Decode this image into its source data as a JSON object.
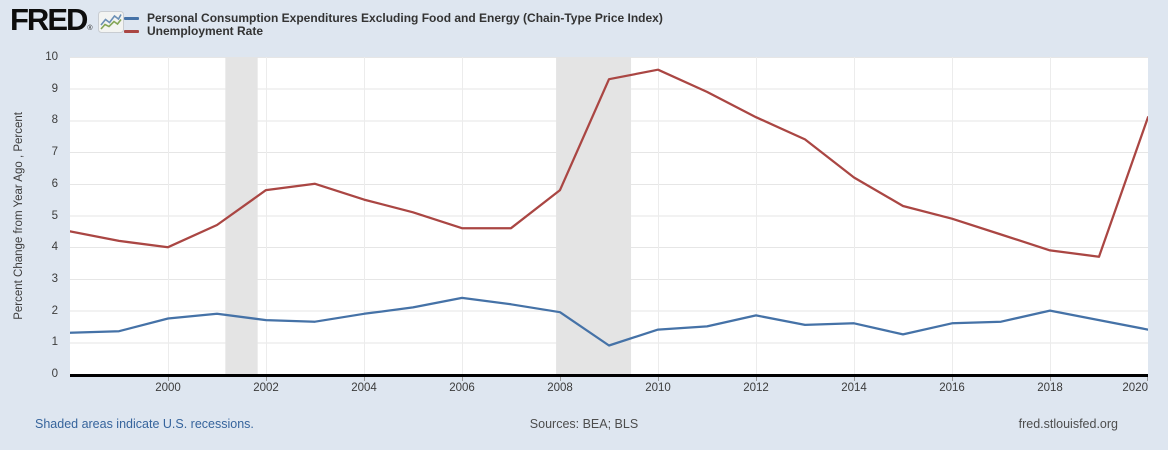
{
  "header": {
    "logo_text": "FRED",
    "logo_registered": "®",
    "logo_icon": "line-chart-icon",
    "legend": [
      {
        "label": "Personal Consumption Expenditures Excluding Food and Energy (Chain-Type Price Index)",
        "color": "#4572a7"
      },
      {
        "label": "Unemployment Rate",
        "color": "#aa4643"
      }
    ]
  },
  "chart_data": {
    "type": "line",
    "title": "",
    "xlabel": "",
    "ylabel": "Percent Change from Year Ago , Percent",
    "ylim": [
      0,
      10
    ],
    "xlim": [
      1998,
      2020
    ],
    "yticks": [
      0,
      1,
      2,
      3,
      4,
      5,
      6,
      7,
      8,
      9,
      10
    ],
    "xticks": [
      2000,
      2002,
      2004,
      2006,
      2008,
      2010,
      2012,
      2014,
      2016,
      2018,
      2020
    ],
    "grid": true,
    "legend_position": "top-left",
    "x": [
      1998,
      1999,
      2000,
      2001,
      2002,
      2003,
      2004,
      2005,
      2006,
      2007,
      2008,
      2009,
      2010,
      2011,
      2012,
      2013,
      2014,
      2015,
      2016,
      2017,
      2018,
      2019,
      2020
    ],
    "series": [
      {
        "name": "Personal Consumption Expenditures Excluding Food and Energy (Chain-Type Price Index)",
        "color": "#4572a7",
        "values": [
          1.3,
          1.35,
          1.75,
          1.9,
          1.7,
          1.65,
          1.9,
          2.1,
          2.4,
          2.2,
          1.95,
          0.9,
          1.4,
          1.5,
          1.85,
          1.55,
          1.6,
          1.25,
          1.6,
          1.65,
          2.0,
          1.7,
          1.4
        ]
      },
      {
        "name": "Unemployment Rate",
        "color": "#aa4643",
        "values": [
          4.5,
          4.2,
          4.0,
          4.7,
          5.8,
          6.0,
          5.5,
          5.1,
          4.6,
          4.6,
          5.8,
          9.3,
          9.6,
          8.9,
          8.1,
          7.4,
          6.2,
          5.3,
          4.9,
          4.4,
          3.9,
          3.7,
          8.1
        ]
      }
    ],
    "recession_bands": [
      [
        2001.17,
        2001.83
      ],
      [
        2007.92,
        2009.45
      ]
    ]
  },
  "footer": {
    "note": "Shaded areas indicate U.S. recessions.",
    "sources": "Sources: BEA; BLS",
    "site": "fred.stlouisfed.org"
  },
  "colors": {
    "background": "#dee6f0",
    "plot_background": "#ffffff",
    "gridline": "#e6e6e6",
    "recession_band": "#e4e4e4",
    "axis": "#000000",
    "series1": "#4572a7",
    "series2": "#aa4643",
    "tick_label": "#3c3c3c",
    "legend_text": "#333333",
    "footer_link": "#36649c",
    "footer_text": "#4d4d4d"
  }
}
